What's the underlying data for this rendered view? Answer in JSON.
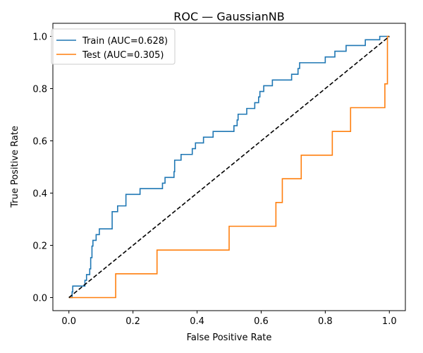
{
  "chart_data": {
    "type": "line",
    "title": "ROC — GaussianNB",
    "xlabel": "False Positive Rate",
    "ylabel": "True Positive Rate",
    "xlim": [
      -0.05,
      1.05
    ],
    "ylim": [
      -0.05,
      1.05
    ],
    "xticks": [
      0.0,
      0.2,
      0.4,
      0.6,
      0.8,
      1.0
    ],
    "yticks": [
      0.0,
      0.2,
      0.4,
      0.6,
      0.8,
      1.0
    ],
    "xtick_labels": [
      "0.0",
      "0.2",
      "0.4",
      "0.6",
      "0.8",
      "1.0"
    ],
    "ytick_labels": [
      "0.0",
      "0.2",
      "0.4",
      "0.6",
      "0.8",
      "1.0"
    ],
    "grid": false,
    "legend_position": "upper-left",
    "series": [
      {
        "name": "Train (AUC=0.628)",
        "color": "#1f77b4",
        "step": true,
        "points": [
          [
            0,
            0
          ],
          [
            0.01,
            0
          ],
          [
            0.01,
            0.022
          ],
          [
            0.012,
            0.022
          ],
          [
            0.012,
            0.044
          ],
          [
            0.05,
            0.044
          ],
          [
            0.05,
            0.066
          ],
          [
            0.055,
            0.066
          ],
          [
            0.055,
            0.088
          ],
          [
            0.065,
            0.088
          ],
          [
            0.065,
            0.11
          ],
          [
            0.068,
            0.11
          ],
          [
            0.068,
            0.153
          ],
          [
            0.072,
            0.153
          ],
          [
            0.072,
            0.197
          ],
          [
            0.075,
            0.197
          ],
          [
            0.075,
            0.219
          ],
          [
            0.085,
            0.219
          ],
          [
            0.085,
            0.241
          ],
          [
            0.095,
            0.241
          ],
          [
            0.095,
            0.263
          ],
          [
            0.135,
            0.263
          ],
          [
            0.135,
            0.285
          ],
          [
            0.135,
            0.329
          ],
          [
            0.152,
            0.329
          ],
          [
            0.152,
            0.351
          ],
          [
            0.178,
            0.351
          ],
          [
            0.178,
            0.395
          ],
          [
            0.222,
            0.395
          ],
          [
            0.222,
            0.417
          ],
          [
            0.292,
            0.417
          ],
          [
            0.292,
            0.438
          ],
          [
            0.3,
            0.438
          ],
          [
            0.3,
            0.46
          ],
          [
            0.328,
            0.46
          ],
          [
            0.328,
            0.482
          ],
          [
            0.33,
            0.482
          ],
          [
            0.33,
            0.526
          ],
          [
            0.35,
            0.526
          ],
          [
            0.35,
            0.548
          ],
          [
            0.385,
            0.548
          ],
          [
            0.385,
            0.57
          ],
          [
            0.395,
            0.57
          ],
          [
            0.395,
            0.592
          ],
          [
            0.42,
            0.592
          ],
          [
            0.42,
            0.614
          ],
          [
            0.45,
            0.614
          ],
          [
            0.45,
            0.636
          ],
          [
            0.515,
            0.636
          ],
          [
            0.515,
            0.658
          ],
          [
            0.525,
            0.658
          ],
          [
            0.525,
            0.68
          ],
          [
            0.528,
            0.68
          ],
          [
            0.528,
            0.702
          ],
          [
            0.555,
            0.702
          ],
          [
            0.555,
            0.724
          ],
          [
            0.58,
            0.724
          ],
          [
            0.58,
            0.746
          ],
          [
            0.592,
            0.746
          ],
          [
            0.592,
            0.768
          ],
          [
            0.596,
            0.768
          ],
          [
            0.596,
            0.789
          ],
          [
            0.608,
            0.789
          ],
          [
            0.608,
            0.811
          ],
          [
            0.635,
            0.811
          ],
          [
            0.635,
            0.833
          ],
          [
            0.695,
            0.833
          ],
          [
            0.695,
            0.855
          ],
          [
            0.715,
            0.855
          ],
          [
            0.715,
            0.877
          ],
          [
            0.72,
            0.877
          ],
          [
            0.72,
            0.899
          ],
          [
            0.8,
            0.899
          ],
          [
            0.8,
            0.921
          ],
          [
            0.83,
            0.921
          ],
          [
            0.83,
            0.943
          ],
          [
            0.865,
            0.943
          ],
          [
            0.865,
            0.965
          ],
          [
            0.925,
            0.965
          ],
          [
            0.925,
            0.987
          ],
          [
            0.97,
            0.987
          ],
          [
            0.97,
            1.0
          ],
          [
            1.0,
            1.0
          ]
        ]
      },
      {
        "name": "Test (AUC=0.305)",
        "color": "#ff7f0e",
        "step": true,
        "points": [
          [
            0,
            0
          ],
          [
            0.146,
            0
          ],
          [
            0.146,
            0.091
          ],
          [
            0.275,
            0.091
          ],
          [
            0.275,
            0.182
          ],
          [
            0.5,
            0.182
          ],
          [
            0.5,
            0.273
          ],
          [
            0.646,
            0.273
          ],
          [
            0.646,
            0.364
          ],
          [
            0.666,
            0.364
          ],
          [
            0.666,
            0.455
          ],
          [
            0.725,
            0.455
          ],
          [
            0.725,
            0.545
          ],
          [
            0.822,
            0.545
          ],
          [
            0.822,
            0.636
          ],
          [
            0.879,
            0.636
          ],
          [
            0.879,
            0.727
          ],
          [
            0.986,
            0.727
          ],
          [
            0.986,
            0.818
          ],
          [
            0.994,
            0.818
          ],
          [
            0.994,
            1.0
          ],
          [
            1.0,
            1.0
          ]
        ]
      }
    ],
    "reference_line": {
      "points": [
        [
          0,
          0
        ],
        [
          1,
          1
        ]
      ],
      "color": "#000000",
      "dashed": true
    }
  }
}
